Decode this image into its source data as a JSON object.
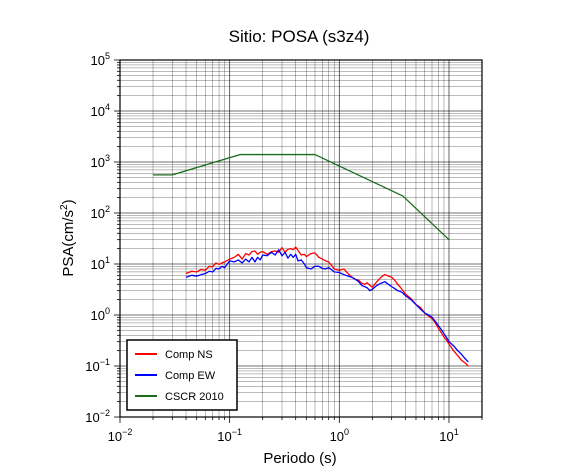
{
  "chart_data": {
    "type": "line",
    "title": "Sitio: POSA (s3z4)",
    "xlabel": "Periodo (s)",
    "ylabel_base": "PSA(cm/s",
    "ylabel_sup": "2",
    "ylabel_end": ")",
    "xscale": "log",
    "yscale": "log",
    "xlim": [
      0.01,
      20
    ],
    "ylim": [
      0.01,
      100000
    ],
    "x_ticks": [
      {
        "base": "10",
        "exp": "−2",
        "value": 0.01
      },
      {
        "base": "10",
        "exp": "−1",
        "value": 0.1
      },
      {
        "base": "10",
        "exp": "0",
        "value": 1
      },
      {
        "base": "10",
        "exp": "1",
        "value": 10
      }
    ],
    "y_ticks": [
      {
        "base": "10",
        "exp": "−2",
        "value": 0.01
      },
      {
        "base": "10",
        "exp": "−1",
        "value": 0.1
      },
      {
        "base": "10",
        "exp": "0",
        "value": 1
      },
      {
        "base": "10",
        "exp": "1",
        "value": 10
      },
      {
        "base": "10",
        "exp": "2",
        "value": 100
      },
      {
        "base": "10",
        "exp": "3",
        "value": 1000
      },
      {
        "base": "10",
        "exp": "4",
        "value": 10000
      },
      {
        "base": "10",
        "exp": "5",
        "value": 100000
      }
    ],
    "grid": true,
    "legend_position": "bottom-left",
    "series": [
      {
        "name": "Comp NS",
        "color": "#ff0000",
        "x": [
          0.04,
          0.045,
          0.05,
          0.055,
          0.06,
          0.065,
          0.07,
          0.075,
          0.08,
          0.085,
          0.09,
          0.1,
          0.11,
          0.12,
          0.13,
          0.14,
          0.15,
          0.16,
          0.17,
          0.18,
          0.19,
          0.2,
          0.22,
          0.24,
          0.26,
          0.28,
          0.3,
          0.32,
          0.34,
          0.36,
          0.38,
          0.4,
          0.42,
          0.45,
          0.48,
          0.5,
          0.55,
          0.6,
          0.65,
          0.7,
          0.75,
          0.8,
          0.9,
          1.0,
          1.1,
          1.2,
          1.3,
          1.4,
          1.5,
          1.6,
          1.7,
          1.8,
          1.9,
          2.0,
          2.2,
          2.4,
          2.6,
          2.8,
          3.0,
          3.2,
          3.4,
          3.6,
          3.8,
          4.0,
          4.5,
          5.0,
          5.5,
          6.0,
          6.5,
          7.0,
          7.5,
          8.0,
          8.5,
          9.0,
          9.5,
          10.0,
          11.0,
          12.0,
          13.0,
          14.0,
          15.0
        ],
        "y": [
          6.5,
          7.2,
          7.0,
          7.8,
          7.5,
          9.0,
          8.8,
          10.5,
          9.8,
          10.5,
          11.0,
          12.5,
          13.5,
          15.5,
          12.5,
          16.0,
          15.0,
          17.5,
          18.0,
          15.5,
          17.0,
          17.5,
          15.5,
          17.5,
          18.0,
          17.0,
          21.0,
          17.0,
          19.5,
          20.0,
          19.0,
          21.5,
          18.5,
          15.0,
          15.5,
          14.0,
          16.0,
          16.5,
          13.5,
          12.5,
          11.5,
          11.0,
          8.0,
          7.5,
          8.0,
          6.5,
          5.5,
          5.0,
          4.8,
          4.2,
          4.0,
          4.3,
          3.8,
          3.5,
          4.5,
          5.5,
          6.2,
          5.8,
          5.5,
          4.8,
          4.0,
          3.5,
          3.0,
          2.6,
          2.1,
          1.6,
          1.4,
          1.1,
          0.95,
          0.85,
          0.7,
          0.55,
          0.45,
          0.37,
          0.32,
          0.27,
          0.2,
          0.16,
          0.13,
          0.115,
          0.1
        ]
      },
      {
        "name": "Comp EW",
        "color": "#0000ff",
        "x": [
          0.04,
          0.045,
          0.05,
          0.055,
          0.06,
          0.065,
          0.07,
          0.075,
          0.08,
          0.085,
          0.09,
          0.1,
          0.11,
          0.12,
          0.13,
          0.14,
          0.15,
          0.16,
          0.17,
          0.18,
          0.19,
          0.2,
          0.22,
          0.24,
          0.26,
          0.28,
          0.3,
          0.32,
          0.34,
          0.36,
          0.38,
          0.4,
          0.42,
          0.45,
          0.48,
          0.5,
          0.55,
          0.6,
          0.65,
          0.7,
          0.75,
          0.8,
          0.9,
          1.0,
          1.1,
          1.2,
          1.3,
          1.4,
          1.5,
          1.6,
          1.7,
          1.8,
          1.9,
          2.0,
          2.2,
          2.4,
          2.6,
          2.8,
          3.0,
          3.2,
          3.4,
          3.6,
          3.8,
          4.0,
          4.5,
          5.0,
          5.5,
          6.0,
          6.5,
          7.0,
          7.5,
          8.0,
          8.5,
          9.0,
          9.5,
          10.0,
          11.0,
          12.0,
          13.0,
          14.0,
          15.0
        ],
        "y": [
          5.5,
          6.0,
          5.8,
          6.2,
          6.5,
          7.2,
          7.0,
          8.2,
          8.0,
          9.0,
          8.5,
          11.5,
          11.0,
          12.0,
          10.5,
          12.5,
          11.0,
          13.5,
          11.0,
          13.5,
          12.0,
          15.0,
          14.5,
          17.0,
          15.0,
          19.0,
          14.5,
          17.0,
          13.0,
          15.5,
          13.5,
          15.5,
          11.5,
          12.0,
          10.0,
          8.5,
          8.0,
          9.0,
          9.0,
          8.2,
          8.0,
          8.5,
          7.0,
          6.8,
          6.2,
          5.8,
          5.5,
          5.0,
          4.5,
          3.8,
          3.6,
          3.4,
          3.0,
          3.2,
          3.8,
          4.2,
          4.5,
          4.0,
          3.6,
          3.3,
          3.0,
          2.9,
          2.7,
          2.4,
          2.0,
          1.6,
          1.3,
          1.1,
          1.0,
          0.9,
          0.75,
          0.62,
          0.52,
          0.43,
          0.36,
          0.3,
          0.25,
          0.2,
          0.17,
          0.14,
          0.12
        ]
      },
      {
        "name": "CSCR 2010",
        "color": "#1a6b1a",
        "x": [
          0.02,
          0.03,
          0.125,
          0.6,
          3.8,
          10.0
        ],
        "y": [
          560,
          560,
          1400,
          1400,
          215,
          30
        ]
      }
    ]
  }
}
